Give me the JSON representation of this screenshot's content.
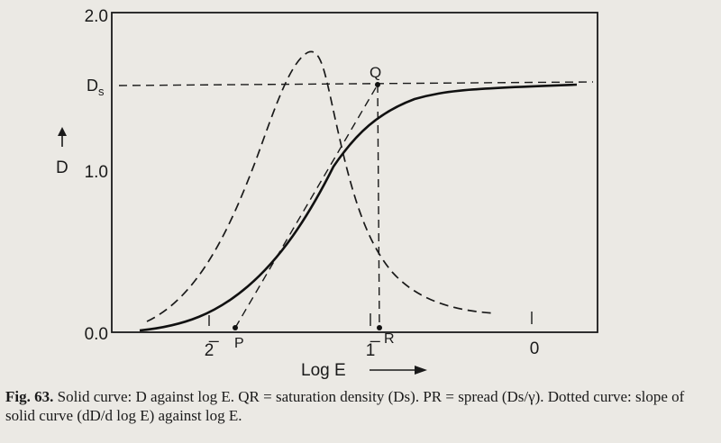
{
  "figure": {
    "y_axis_label": "D",
    "x_axis_label": "Log E",
    "y_ticks": [
      "2.0",
      "1.0",
      "0.0"
    ],
    "x_ticks": [
      "2̅",
      "1̅",
      "0"
    ],
    "point_labels": {
      "P": "P",
      "Q": "Q",
      "R": "R",
      "Ds": "D"
    },
    "ds_subscript": "s"
  },
  "caption": {
    "fig_label": "Fig. 63.",
    "text": "Solid curve: D against log E. QR = saturation density (Ds). PR = spread (Ds/γ). Dotted curve: slope of solid curve (dD/d log E) against log E."
  },
  "chart_data": {
    "type": "line",
    "xlabel": "Log E",
    "ylabel": "D",
    "ylim": [
      0,
      2.0
    ],
    "x_tick_labels": [
      "2̅",
      "1̅",
      "0"
    ],
    "series": [
      {
        "name": "D against log E",
        "style": "solid",
        "x": [
          -2.35,
          -2.0,
          -1.85,
          -1.7,
          -1.55,
          -1.4,
          -1.25,
          -1.1,
          -0.95,
          -0.8,
          -0.65,
          -0.5,
          -0.35,
          -0.15,
          0.1,
          0.3
        ],
        "y": [
          0.0,
          0.1,
          0.2,
          0.33,
          0.5,
          0.72,
          0.96,
          1.16,
          1.3,
          1.4,
          1.48,
          1.52,
          1.54,
          1.55,
          1.56,
          1.57
        ]
      },
      {
        "name": "dD/d log E against log E",
        "style": "dotted",
        "x": [
          -2.3,
          -2.1,
          -1.9,
          -1.7,
          -1.55,
          -1.42,
          -1.33,
          -1.25,
          -1.15,
          -1.0,
          -0.85,
          -0.7,
          -0.55,
          -0.42
        ],
        "y": [
          0.08,
          0.25,
          0.65,
          1.25,
          1.62,
          1.72,
          1.58,
          1.2,
          0.78,
          0.45,
          0.22,
          0.12,
          0.07,
          0.06
        ]
      }
    ],
    "annotations": [
      "P",
      "Q",
      "R",
      "Ds"
    ]
  }
}
